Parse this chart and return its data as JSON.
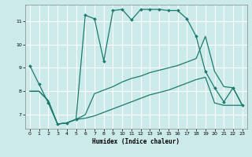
{
  "xlabel": "Humidex (Indice chaleur)",
  "bg_color": "#cceaea",
  "grid_color": "#ffffff",
  "line_color": "#1a7a6e",
  "xlim": [
    -0.5,
    23.5
  ],
  "ylim": [
    6.4,
    11.7
  ],
  "xticks": [
    0,
    1,
    2,
    3,
    4,
    5,
    6,
    7,
    8,
    9,
    10,
    11,
    12,
    13,
    14,
    15,
    16,
    17,
    18,
    19,
    20,
    21,
    22,
    23
  ],
  "yticks": [
    7,
    8,
    9,
    10,
    11
  ],
  "line1_x": [
    0,
    1,
    2,
    3,
    4,
    5,
    6,
    7,
    8,
    9,
    10,
    11,
    12,
    13,
    14,
    15,
    16,
    17,
    18,
    19,
    20,
    21,
    22,
    23
  ],
  "line1_y": [
    9.1,
    8.3,
    7.5,
    6.6,
    6.65,
    6.8,
    11.25,
    11.1,
    9.3,
    11.45,
    11.5,
    11.05,
    11.5,
    11.5,
    11.5,
    11.45,
    11.45,
    11.1,
    10.35,
    8.85,
    8.15,
    7.55,
    8.15,
    7.4
  ],
  "line2_x": [
    0,
    1,
    2,
    3,
    4,
    5,
    6,
    7,
    8,
    9,
    10,
    11,
    12,
    13,
    14,
    15,
    16,
    17,
    18,
    19,
    20,
    21,
    22,
    23
  ],
  "line2_y": [
    8.0,
    8.0,
    7.6,
    6.6,
    6.65,
    6.8,
    7.0,
    7.9,
    8.05,
    8.2,
    8.4,
    8.55,
    8.65,
    8.8,
    8.9,
    9.0,
    9.1,
    9.25,
    9.4,
    10.35,
    8.85,
    8.2,
    8.15,
    7.4
  ],
  "line3_x": [
    0,
    1,
    2,
    3,
    4,
    5,
    6,
    7,
    8,
    9,
    10,
    11,
    12,
    13,
    14,
    15,
    16,
    17,
    18,
    19,
    20,
    21,
    22,
    23
  ],
  "line3_y": [
    8.0,
    8.0,
    7.6,
    6.6,
    6.65,
    6.8,
    6.85,
    6.95,
    7.1,
    7.25,
    7.4,
    7.55,
    7.7,
    7.85,
    7.95,
    8.05,
    8.2,
    8.35,
    8.5,
    8.6,
    7.5,
    7.4,
    7.4,
    7.4
  ]
}
